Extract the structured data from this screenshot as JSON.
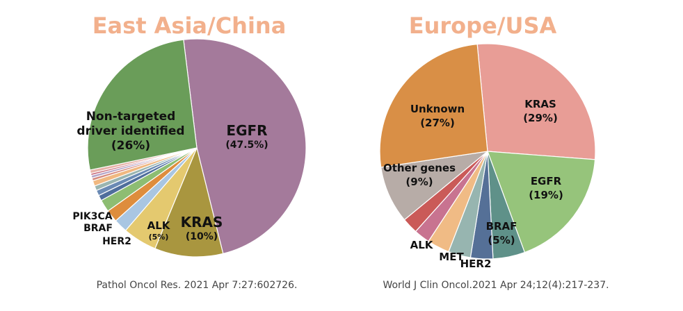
{
  "chart_data": [
    {
      "type": "pie",
      "title": "East Asia/China",
      "caption": "Pathol Oncol Res. 2021 Apr 7:27:602726.",
      "slices": [
        {
          "name": "EGFR",
          "value": 47.5,
          "value_label": "(47.5%)",
          "color": "#a47a9b",
          "label_lines": [
            "EGFR"
          ]
        },
        {
          "name": "KRAS",
          "value": 10,
          "value_label": "(10%)",
          "color": "#a9963f",
          "label_lines": [
            "KRAS"
          ]
        },
        {
          "name": "ALK",
          "value": 5,
          "value_label": "(5%)",
          "color": "#e4c96f",
          "label_lines": [
            "ALK"
          ]
        },
        {
          "name": "HER2",
          "value": 2,
          "value_label": "",
          "color": "#a9c6e2",
          "label_lines": [
            "HER2"
          ]
        },
        {
          "name": "BRAF",
          "value": 1.8,
          "value_label": "",
          "color": "#de8d3d",
          "label_lines": [
            "BRAF"
          ]
        },
        {
          "name": "PIK3CA",
          "value": 1.8,
          "value_label": "",
          "color": "#8dbd72",
          "label_lines": [
            "PIK3CA"
          ]
        },
        {
          "name": "",
          "value": 0.8,
          "value_label": "",
          "color": "#4f6e9c",
          "label_lines": []
        },
        {
          "name": "",
          "value": 0.8,
          "value_label": "",
          "color": "#6a8ab4",
          "label_lines": []
        },
        {
          "name": "",
          "value": 0.7,
          "value_label": "",
          "color": "#9ab5b0",
          "label_lines": []
        },
        {
          "name": "",
          "value": 0.8,
          "value_label": "",
          "color": "#f0b880",
          "label_lines": []
        },
        {
          "name": "",
          "value": 0.4,
          "value_label": "",
          "color": "#d58a7e",
          "label_lines": []
        },
        {
          "name": "",
          "value": 0.4,
          "value_label": "",
          "color": "#b4a5c9",
          "label_lines": []
        },
        {
          "name": "",
          "value": 0.3,
          "value_label": "",
          "color": "#c86a7a",
          "label_lines": []
        },
        {
          "name": "",
          "value": 0.5,
          "value_label": "",
          "color": "#e7b3a8",
          "label_lines": []
        },
        {
          "name": "Non-targeted driver identified",
          "value": 26,
          "value_label": "(26%)",
          "color": "#6a9d59",
          "label_lines": [
            "Non-targeted",
            "driver identified"
          ]
        }
      ]
    },
    {
      "type": "pie",
      "title": "Europe/USA",
      "caption": "World J Clin Oncol.2021 Apr 24;12(4):217-237.",
      "slices": [
        {
          "name": "KRAS",
          "value": 29,
          "value_label": "(29%)",
          "color": "#e89d96",
          "label_lines": [
            "KRAS"
          ]
        },
        {
          "name": "EGFR",
          "value": 19,
          "value_label": "(19%)",
          "color": "#96c47b",
          "label_lines": [
            "EGFR"
          ]
        },
        {
          "name": "BRAF",
          "value": 5,
          "value_label": "(5%)",
          "color": "#5f9189",
          "label_lines": [
            "BRAF"
          ]
        },
        {
          "name": "HER2",
          "value": 3.5,
          "value_label": "",
          "color": "#557097",
          "label_lines": [
            "HER2"
          ]
        },
        {
          "name": "MET",
          "value": 3.5,
          "value_label": "",
          "color": "#97b5b0",
          "label_lines": [
            "MET"
          ]
        },
        {
          "name": "ALK",
          "value": 3.5,
          "value_label": "",
          "color": "#f0bb85",
          "label_lines": [
            "ALK"
          ]
        },
        {
          "name": "",
          "value": 2.5,
          "value_label": "",
          "color": "#c87390",
          "label_lines": []
        },
        {
          "name": "",
          "value": 2.5,
          "value_label": "",
          "color": "#ca5a58",
          "label_lines": []
        },
        {
          "name": "Other genes",
          "value": 9,
          "value_label": "(9%)",
          "color": "#b7aca7",
          "label_lines": [
            "Other genes"
          ]
        },
        {
          "name": "Unknown",
          "value": 27,
          "value_label": "(27%)",
          "color": "#d98f46",
          "label_lines": [
            "Unknown"
          ]
        }
      ]
    }
  ]
}
